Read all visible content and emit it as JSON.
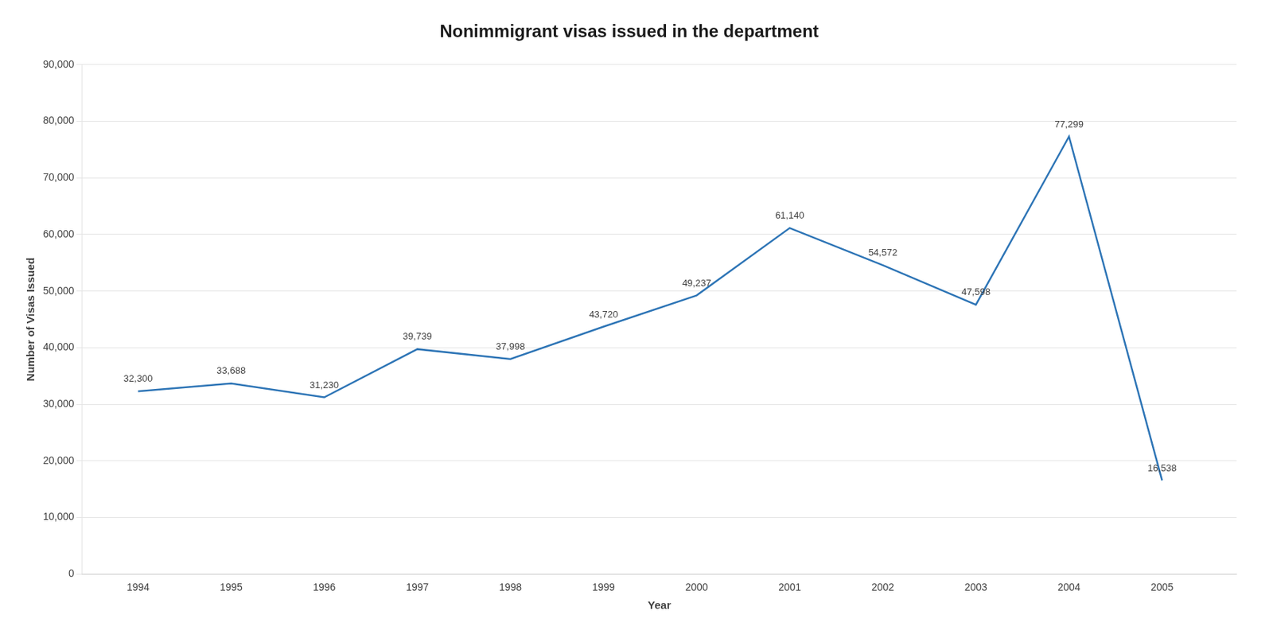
{
  "chart_data": {
    "type": "line",
    "title": "Nonimmigrant visas issued in the department",
    "xlabel": "Year",
    "ylabel": "Number of Visas Issued",
    "x": [
      1994,
      1995,
      1996,
      1997,
      1998,
      1999,
      2000,
      2001,
      2002,
      2003,
      2004,
      2005
    ],
    "values": [
      32300,
      33688,
      31230,
      39739,
      37998,
      43720,
      49237,
      61140,
      54572,
      47598,
      77299,
      16538
    ],
    "value_labels": [
      "32,300",
      "33,688",
      "31,230",
      "39,739",
      "37,998",
      "43,720",
      "49,237",
      "61,140",
      "54,572",
      "47,598",
      "77,299",
      "16,538"
    ],
    "color": "#2E75B6",
    "xlim": [
      1993.4,
      2005.8
    ],
    "xticks": [
      1994,
      1995,
      1996,
      1997,
      1998,
      1999,
      2000,
      2001,
      2002,
      2003,
      2004,
      2005
    ],
    "ylim": [
      0,
      90000
    ],
    "yticks": [
      0,
      {
        "value": 10000,
        "label": "10,000"
      },
      {
        "value": 20000,
        "label": "20,000"
      },
      {
        "value": 30000,
        "label": "30,000"
      },
      {
        "value": 40000,
        "label": "40,000"
      },
      {
        "value": 50000,
        "label": "50,000"
      },
      {
        "value": 60000,
        "label": "60,000"
      },
      {
        "value": 70000,
        "label": "70,000"
      },
      {
        "value": 80000,
        "label": "80,000"
      },
      {
        "value": 90000,
        "label": "90,000"
      }
    ],
    "grid": "y",
    "data_labels": true,
    "marker": "none",
    "line_style": "solid"
  }
}
